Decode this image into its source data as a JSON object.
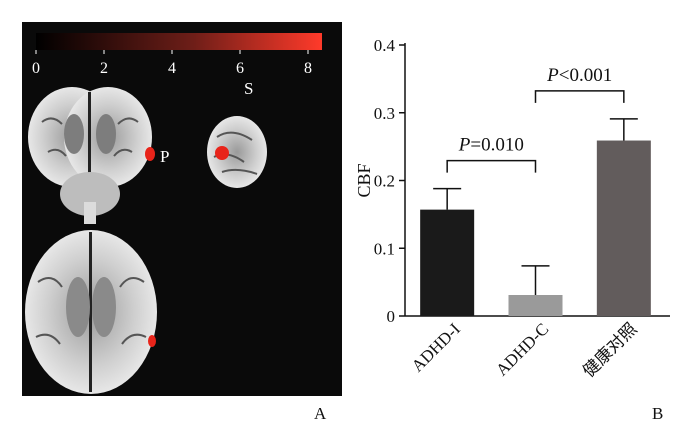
{
  "panel_a": {
    "letter": "A",
    "colorbar": {
      "ticks": [
        "0",
        "2",
        "4",
        "6",
        "8"
      ],
      "color_low": "#000000",
      "color_high": "#ff3a2a"
    },
    "view_labels": {
      "sagittal": "S",
      "posterior": "P"
    }
  },
  "panel_b": {
    "letter": "B"
  },
  "chart_data": {
    "type": "bar",
    "categories": [
      "ADHD-I",
      "ADHD-C",
      "健康对照"
    ],
    "values": [
      0.157,
      0.031,
      0.259
    ],
    "errors": [
      0.031,
      0.043,
      0.032
    ],
    "colors": [
      "#1a1a1a",
      "#9a9a9a",
      "#625c5c"
    ],
    "ylabel": "CBF",
    "ylim": [
      0,
      0.4
    ],
    "yticks": [
      "0",
      "0.1",
      "0.2",
      "0.3",
      "0.4"
    ],
    "annotations": [
      {
        "from": 0,
        "to": 1,
        "p_symbol": "P",
        "p_text": "=0.010"
      },
      {
        "from": 1,
        "to": 2,
        "p_symbol": "P",
        "p_text": "<0.001"
      }
    ]
  }
}
